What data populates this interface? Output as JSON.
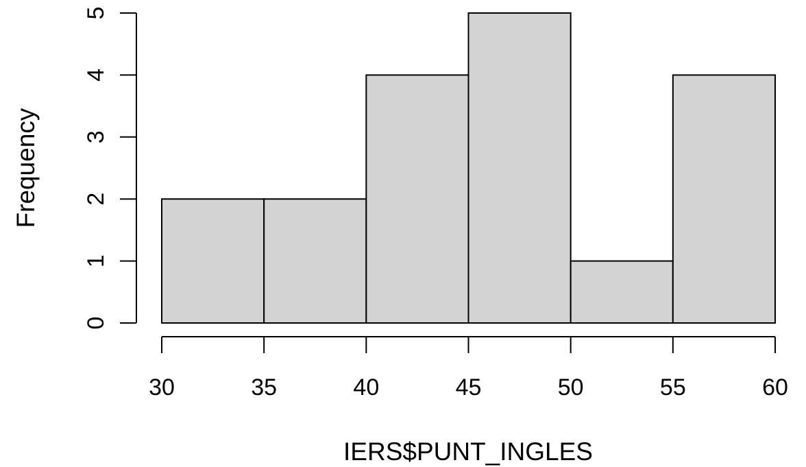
{
  "chart_data": {
    "type": "bar",
    "title": "",
    "xlabel": "IERS$PUNT_INGLES",
    "ylabel": "Frequency",
    "bins": [
      {
        "from": 30,
        "to": 35,
        "count": 2
      },
      {
        "from": 35,
        "to": 40,
        "count": 2
      },
      {
        "from": 40,
        "to": 45,
        "count": 4
      },
      {
        "from": 45,
        "to": 50,
        "count": 5
      },
      {
        "from": 50,
        "to": 55,
        "count": 1
      },
      {
        "from": 55,
        "to": 60,
        "count": 4
      }
    ],
    "xlim": [
      30,
      60
    ],
    "ylim": [
      0,
      5
    ],
    "x_ticks": [
      "30",
      "35",
      "40",
      "45",
      "50",
      "55",
      "60"
    ],
    "y_ticks": [
      "0",
      "1",
      "2",
      "3",
      "4",
      "5"
    ],
    "bar_color": "#d3d3d3",
    "edge_color": "#000000",
    "grid": false
  }
}
